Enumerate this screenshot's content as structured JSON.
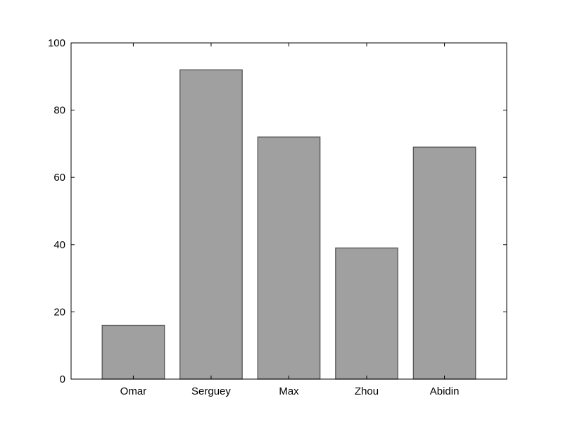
{
  "chart_data": {
    "type": "bar",
    "categories": [
      "Omar",
      "Serguey",
      "Max",
      "Zhou",
      "Abidin"
    ],
    "values": [
      16,
      92,
      72,
      39,
      69
    ],
    "title": "",
    "xlabel": "",
    "ylabel": "",
    "ylim": [
      0,
      100
    ],
    "yticks": [
      "0",
      "20",
      "40",
      "60",
      "80",
      "100"
    ],
    "grid": false,
    "legend": "none",
    "bar_color": "#a0a0a0",
    "bar_edge_color": "#555555",
    "axis_color": "#000000"
  }
}
